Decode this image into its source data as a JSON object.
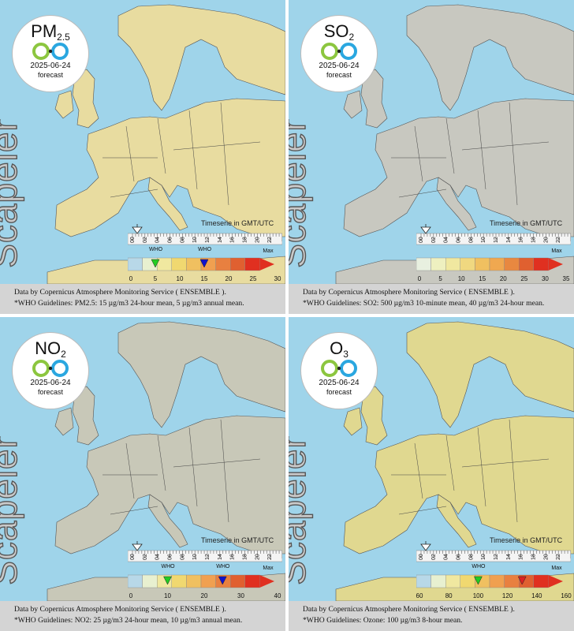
{
  "panels": [
    {
      "id": "pm25",
      "pollutant_main": "PM",
      "pollutant_sub": "2.5",
      "date": "2025-06-24",
      "forecast": "forecast",
      "brand": "Scapeler",
      "timeserie": "Timeserie in GMT/UTC",
      "hours": [
        "00",
        "02",
        "04",
        "06",
        "08",
        "10",
        "12",
        "14",
        "16",
        "18",
        "20",
        "22"
      ],
      "who_labels": [
        "WHO",
        "WHO"
      ],
      "max_label": "Max",
      "ticks": [
        "0",
        "5",
        "10",
        "15",
        "20",
        "25",
        "30"
      ],
      "colorbar": [
        "#b8d8e8",
        "#e8f0d0",
        "#f0e8a0",
        "#f0d870",
        "#f0c060",
        "#f0a050",
        "#e88040",
        "#e06030",
        "#e03020"
      ],
      "who_marker_colors": [
        "#22cc22",
        "#1111cc"
      ],
      "who_values": [
        5,
        15
      ],
      "land_color": "#e8dca0",
      "footer_line1": "Data by Copernicus Atmosphere Monitoring Service ( ENSEMBLE ).",
      "footer_line2": "*WHO Guidelines: PM2.5: 15 µg/m3 24-hour mean, 5 µg/m3 annual mean."
    },
    {
      "id": "so2",
      "pollutant_main": "SO",
      "pollutant_sub": "2",
      "date": "2025-06-24",
      "forecast": "forecast",
      "brand": "Scapeler",
      "timeserie": "Timeserie in GMT/UTC",
      "hours": [
        "00",
        "02",
        "04",
        "06",
        "08",
        "10",
        "12",
        "14",
        "16",
        "18",
        "20",
        "22"
      ],
      "who_labels": [],
      "max_label": "Max",
      "ticks": [
        "0",
        "5",
        "10",
        "15",
        "20",
        "25",
        "30",
        "35"
      ],
      "colorbar": [
        "#e8f0e0",
        "#eef0c0",
        "#f0e8a0",
        "#f0d880",
        "#f0c060",
        "#f0a850",
        "#e88840",
        "#e06030",
        "#e03020"
      ],
      "who_marker_colors": [],
      "who_values": [],
      "land_color": "#c8c8c0",
      "footer_line1": "Data by Copernicus Atmosphere Monitoring Service ( ENSEMBLE ).",
      "footer_line2": "*WHO Guidelines: SO2: 500 µg/m3 10-minute mean, 40 µg/m3 24-hour mean."
    },
    {
      "id": "no2",
      "pollutant_main": "NO",
      "pollutant_sub": "2",
      "date": "2025-06-24",
      "forecast": "forecast",
      "brand": "Scapeler",
      "timeserie": "Timeserie in GMT/UTC",
      "hours": [
        "00",
        "02",
        "04",
        "06",
        "08",
        "10",
        "12",
        "14",
        "16",
        "18",
        "20",
        "22"
      ],
      "who_labels": [
        "WHO",
        "WHO"
      ],
      "max_label": "Max",
      "ticks": [
        "0",
        "10",
        "20",
        "30",
        "40"
      ],
      "colorbar": [
        "#b8d8e8",
        "#e8f0d0",
        "#f0e8a0",
        "#f0d870",
        "#f0c060",
        "#f0a050",
        "#e88040",
        "#e06030",
        "#e03020"
      ],
      "who_marker_colors": [
        "#22cc22",
        "#1111cc"
      ],
      "who_values": [
        10,
        25
      ],
      "land_color": "#c8c8b8",
      "footer_line1": "Data by Copernicus Atmosphere Monitoring Service ( ENSEMBLE ).",
      "footer_line2": "*WHO Guidelines: NO2: 25 µg/m3 24-hour mean, 10 µg/m3 annual mean."
    },
    {
      "id": "o3",
      "pollutant_main": "O",
      "pollutant_sub": "3",
      "date": "2025-06-24",
      "forecast": "forecast",
      "brand": "Scapeler",
      "timeserie": "Timeserie in GMT/UTC",
      "hours": [
        "00",
        "02",
        "04",
        "06",
        "08",
        "10",
        "12",
        "14",
        "16",
        "18",
        "20",
        "22"
      ],
      "who_labels": [
        "WHO"
      ],
      "max_label": "Max",
      "ticks": [
        "60",
        "80",
        "100",
        "120",
        "140",
        "160"
      ],
      "colorbar": [
        "#b8d8e8",
        "#e8f0d0",
        "#f0e8a0",
        "#f0d870",
        "#f0c060",
        "#f0a050",
        "#e88040",
        "#e06030",
        "#e03020"
      ],
      "who_marker_colors": [
        "#22cc22",
        "#dd2222"
      ],
      "who_values": [
        100,
        130
      ],
      "land_color": "#e0d890",
      "footer_line1": "Data by Copernicus Atmosphere Monitoring Service ( ENSEMBLE ).",
      "footer_line2": "*WHO Guidelines: Ozone: 100 µg/m3 8-hour mean."
    }
  ]
}
